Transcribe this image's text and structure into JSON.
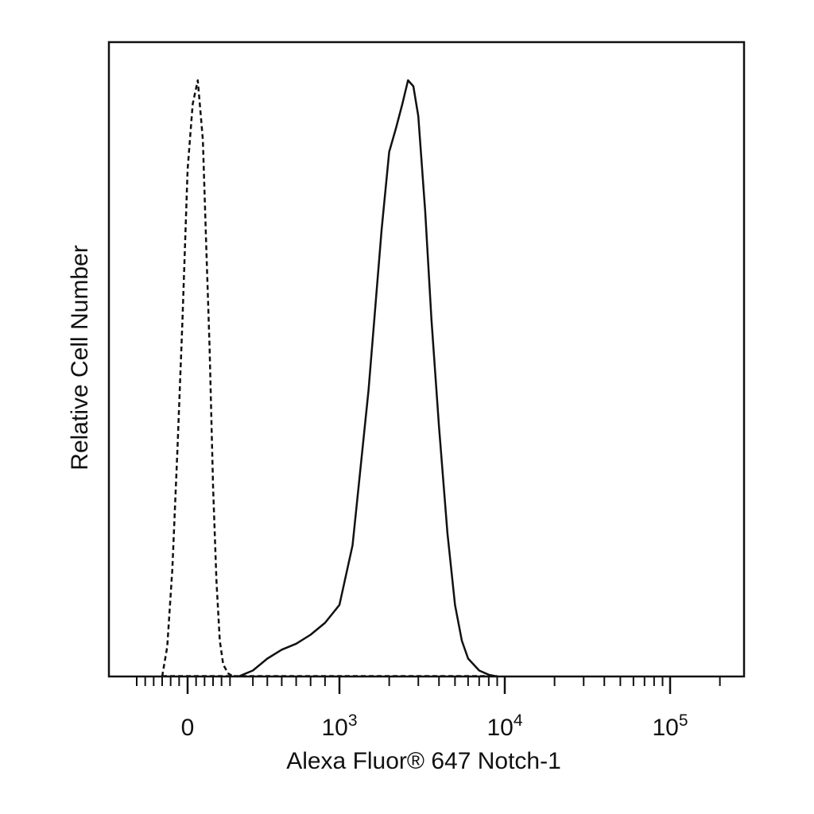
{
  "chart_data": {
    "type": "line",
    "title": "",
    "xlabel": "Alexa Fluor® 647 Notch-1",
    "ylabel": "Relative Cell Number",
    "x_scale": "biexponential",
    "xlim": [
      -300,
      250000
    ],
    "ylim": [
      0,
      100
    ],
    "x_tick_labels": [
      {
        "value": 0,
        "base": "0",
        "exp": ""
      },
      {
        "value": 1000,
        "base": "10",
        "exp": "3"
      },
      {
        "value": 10000,
        "base": "10",
        "exp": "4"
      },
      {
        "value": 100000,
        "base": "10",
        "exp": "5"
      }
    ],
    "grid": false,
    "legend": "none",
    "series": [
      {
        "style": "dashed",
        "color": "#111111",
        "x": [
          -150,
          -120,
          -90,
          -60,
          -30,
          0,
          30,
          60,
          90,
          110,
          130,
          150,
          170,
          190,
          210,
          240,
          270
        ],
        "y": [
          0,
          5,
          18,
          38,
          60,
          85,
          96,
          100,
          90,
          72,
          55,
          32,
          16,
          6,
          2,
          0.5,
          0
        ]
      },
      {
        "style": "solid",
        "color": "#111111",
        "x": [
          300,
          400,
          500,
          600,
          700,
          800,
          900,
          1000,
          1200,
          1500,
          1800,
          2000,
          2200,
          2400,
          2600,
          2800,
          3000,
          3300,
          3600,
          4000,
          4500,
          5000,
          5500,
          6000,
          7000,
          8000,
          9000
        ],
        "y": [
          0,
          1,
          3,
          4.5,
          5.5,
          7,
          9,
          12,
          22,
          48,
          75,
          88,
          92,
          96,
          100,
          99,
          94,
          78,
          60,
          42,
          24,
          12,
          6,
          3,
          1,
          0.3,
          0
        ]
      }
    ]
  }
}
